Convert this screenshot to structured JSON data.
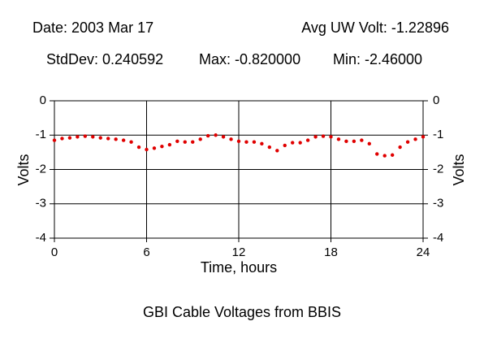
{
  "chart_data": {
    "type": "scatter",
    "annotations": [
      "Date: 2003 Mar 17",
      "Avg UW Volt: -1.22896",
      "StdDev: 0.240592",
      "Max: -0.820000",
      "Min: -2.46000"
    ],
    "title": "GBI Cable Voltages from BBIS",
    "x_label": "Time, hours",
    "y_label": "Volts",
    "x": [
      0,
      0.5,
      1,
      1.5,
      2,
      2.5,
      3,
      3.5,
      4,
      4.5,
      5,
      5.5,
      6,
      6.5,
      7,
      7.5,
      8,
      8.5,
      9,
      9.5,
      10,
      10.5,
      11,
      11.5,
      12,
      12.5,
      13,
      13.5,
      14,
      14.5,
      15,
      15.5,
      16,
      16.5,
      17,
      17.5,
      18,
      18.5,
      19,
      19.5,
      20,
      20.5,
      21,
      21.5,
      22,
      22.5,
      23,
      23.5,
      24
    ],
    "values": [
      -1.15,
      -1.1,
      -1.08,
      -1.05,
      -1.03,
      -1.05,
      -1.08,
      -1.1,
      -1.12,
      -1.15,
      -1.2,
      -1.35,
      -1.42,
      -1.38,
      -1.33,
      -1.28,
      -1.18,
      -1.2,
      -1.2,
      -1.12,
      -1.02,
      -1.0,
      -1.05,
      -1.12,
      -1.18,
      -1.2,
      -1.2,
      -1.25,
      -1.35,
      -1.45,
      -1.3,
      -1.22,
      -1.22,
      -1.15,
      -1.05,
      -1.03,
      -1.05,
      -1.12,
      -1.18,
      -1.18,
      -1.15,
      -1.25,
      -1.55,
      -1.6,
      -1.58,
      -1.35,
      -1.2,
      -1.12,
      -1.05
    ],
    "color": "#e00000",
    "xlim": [
      0,
      24
    ],
    "xticks": [
      0,
      6,
      12,
      18,
      24
    ],
    "ylim": [
      -4,
      0
    ],
    "yticks": [
      0,
      -1,
      -2,
      -3,
      -4
    ],
    "grid": true
  }
}
